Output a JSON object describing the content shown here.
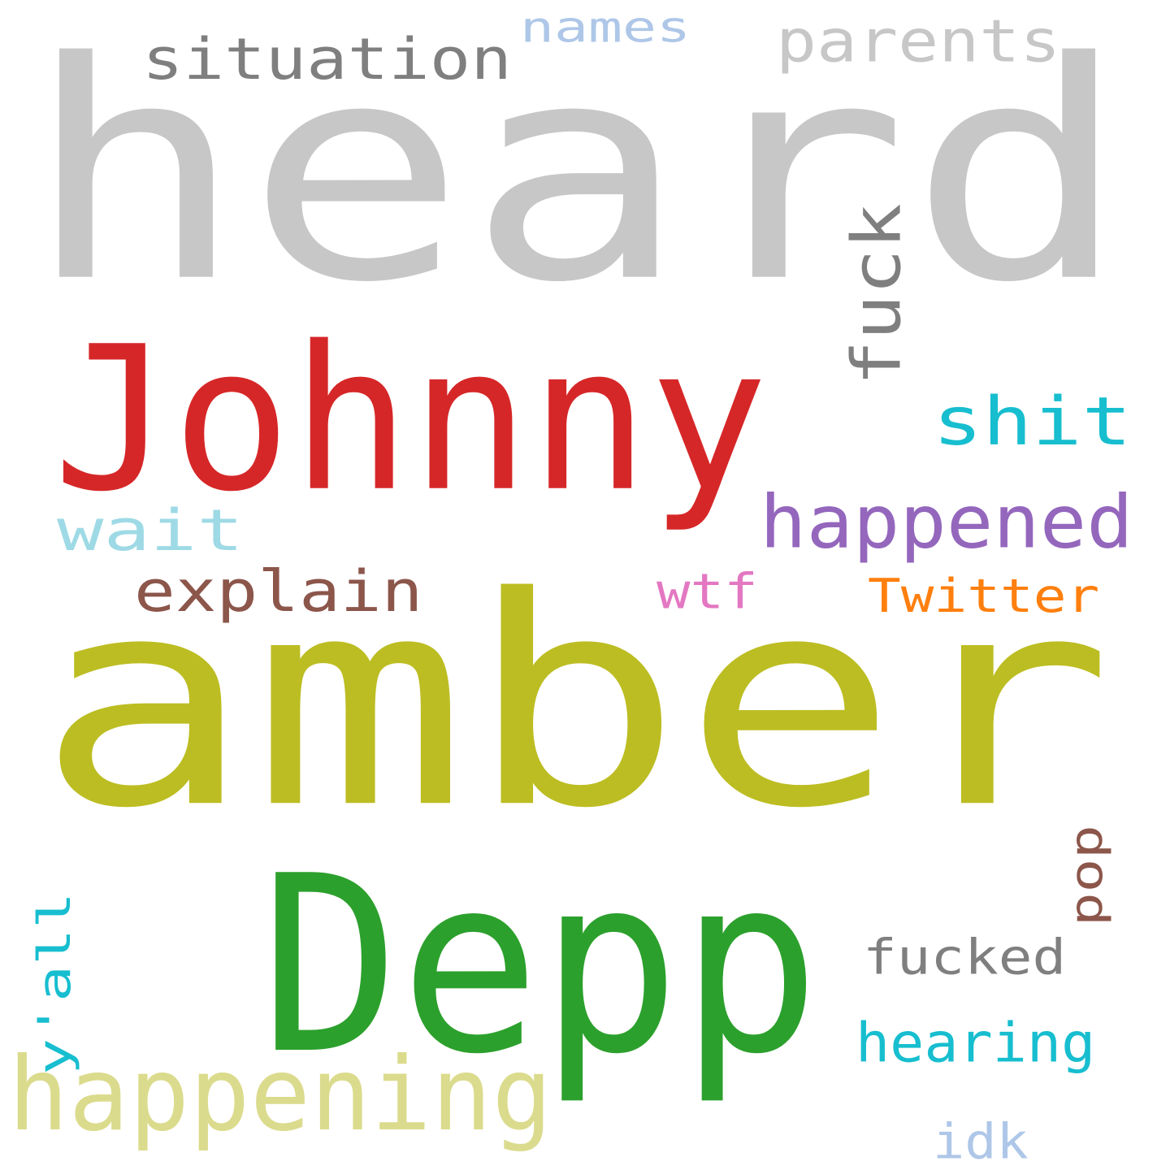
{
  "words": [
    {
      "id": "heard",
      "text": "heard",
      "color": "#c7c7c7",
      "rotated": false
    },
    {
      "id": "amber",
      "text": "amber",
      "color": "#bcbd22",
      "rotated": false
    },
    {
      "id": "johnny",
      "text": "Johnny",
      "color": "#d62728",
      "rotated": false
    },
    {
      "id": "depp",
      "text": "Depp",
      "color": "#2ca02c",
      "rotated": false
    },
    {
      "id": "happening",
      "text": "happening",
      "color": "#dbdb8d",
      "rotated": false
    },
    {
      "id": "situation",
      "text": "situation",
      "color": "#7f7f7f",
      "rotated": false
    },
    {
      "id": "parents",
      "text": "parents",
      "color": "#c7c7c7",
      "rotated": false
    },
    {
      "id": "names",
      "text": "names",
      "color": "#aec7e8",
      "rotated": false
    },
    {
      "id": "fuck",
      "text": "fuck",
      "color": "#7f7f7f",
      "rotated": true
    },
    {
      "id": "shit",
      "text": "shit",
      "color": "#17becf",
      "rotated": false
    },
    {
      "id": "happened",
      "text": "happened",
      "color": "#9467bd",
      "rotated": false
    },
    {
      "id": "wait",
      "text": "wait",
      "color": "#9edae5",
      "rotated": false
    },
    {
      "id": "explain",
      "text": "explain",
      "color": "#8c564b",
      "rotated": false
    },
    {
      "id": "wtf",
      "text": "wtf",
      "color": "#e377c2",
      "rotated": false
    },
    {
      "id": "twitter",
      "text": "Twitter",
      "color": "#ff7f0e",
      "rotated": false
    },
    {
      "id": "pop",
      "text": "pop",
      "color": "#8c564b",
      "rotated": true
    },
    {
      "id": "fucked",
      "text": "fucked",
      "color": "#7f7f7f",
      "rotated": false
    },
    {
      "id": "yall",
      "text": "y'all",
      "color": "#17becf",
      "rotated": true
    },
    {
      "id": "hearing",
      "text": "hearing",
      "color": "#17becf",
      "rotated": false
    },
    {
      "id": "idk",
      "text": "idk",
      "color": "#aec7e8",
      "rotated": false
    }
  ]
}
